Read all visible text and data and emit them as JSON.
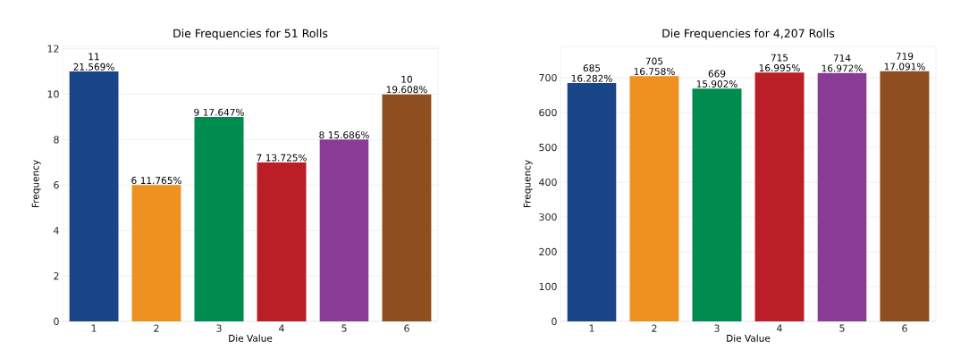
{
  "chart_data": [
    {
      "type": "bar",
      "title": "Die Frequencies for 51 Rolls",
      "xlabel": "Die Value",
      "ylabel": "Frequency",
      "categories": [
        "1",
        "2",
        "3",
        "4",
        "5",
        "6"
      ],
      "values": [
        11,
        6,
        9,
        7,
        8,
        10
      ],
      "colors": [
        "#1a4589",
        "#ee9121",
        "#008c4f",
        "#ba1f25",
        "#8a3b96",
        "#8e4e20"
      ],
      "value_labels": [
        "11 21.569%",
        "6 11.765%",
        "9 17.647%",
        "7 13.725%",
        "8 15.686%",
        "10 19.608%"
      ],
      "ylim": [
        0,
        12.1
      ],
      "yticks": [
        0,
        2,
        4,
        6,
        8,
        10,
        12
      ],
      "grid": "y"
    },
    {
      "type": "bar",
      "title": "Die Frequencies for 4,207 Rolls",
      "xlabel": "Die Value",
      "ylabel": "Frequency",
      "categories": [
        "1",
        "2",
        "3",
        "4",
        "5",
        "6"
      ],
      "values": [
        685,
        705,
        669,
        715,
        714,
        719
      ],
      "colors": [
        "#1a4589",
        "#ee9121",
        "#008c4f",
        "#ba1f25",
        "#8a3b96",
        "#8e4e20"
      ],
      "value_labels": [
        "685 16.282%",
        "705 16.758%",
        "669 15.902%",
        "715 16.995%",
        "714 16.972%",
        "719 17.091%"
      ],
      "ylim": [
        0,
        790
      ],
      "yticks": [
        0,
        100,
        200,
        300,
        400,
        500,
        600,
        700
      ],
      "grid": "y"
    }
  ]
}
